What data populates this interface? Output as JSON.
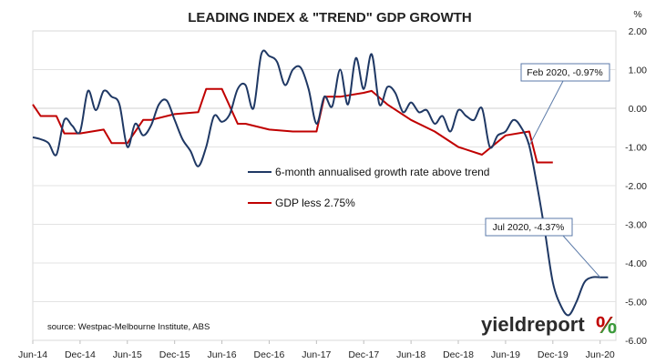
{
  "chart_data": {
    "type": "line",
    "title": "LEADING INDEX & \"TREND\" GDP GROWTH",
    "y_unit": "%",
    "ylim": [
      -6.0,
      2.0
    ],
    "yticks": [
      "2.00",
      "1.00",
      "0.00",
      "-1.00",
      "-2.00",
      "-3.00",
      "-4.00",
      "-5.00",
      "-6.00"
    ],
    "xticks": [
      "Jun-14",
      "Dec-14",
      "Jun-15",
      "Dec-15",
      "Jun-16",
      "Dec-16",
      "Jun-17",
      "Dec-17",
      "Jun-18",
      "Dec-18",
      "Jun-19",
      "Dec-19",
      "Jun-20"
    ],
    "grid": "horizontal-only",
    "legend_position": "center",
    "series": [
      {
        "name": "6-month annualised growth rate above trend",
        "color": "#1f3864",
        "x_months": [
          0,
          1,
          2,
          3,
          4,
          5,
          6,
          7,
          8,
          9,
          10,
          11,
          12,
          13,
          14,
          15,
          16,
          17,
          18,
          19,
          20,
          21,
          22,
          23,
          24,
          25,
          26,
          27,
          28,
          29,
          30,
          31,
          32,
          33,
          34,
          35,
          36,
          37,
          38,
          39,
          40,
          41,
          42,
          43,
          44,
          45,
          46,
          47,
          48,
          49,
          50,
          51,
          52,
          53,
          54,
          55,
          56,
          57,
          58,
          59,
          60,
          61,
          62,
          63,
          64,
          65,
          66,
          67,
          68,
          69,
          70,
          71,
          72,
          73
        ],
        "values": [
          -0.75,
          -0.8,
          -0.9,
          -1.2,
          -0.3,
          -0.45,
          -0.6,
          0.45,
          -0.05,
          0.45,
          0.3,
          0.1,
          -1.0,
          -0.4,
          -0.7,
          -0.45,
          0.1,
          0.2,
          -0.3,
          -0.8,
          -1.1,
          -1.5,
          -1.0,
          -0.2,
          -0.35,
          -0.15,
          0.5,
          0.6,
          0.0,
          1.4,
          1.35,
          1.2,
          0.6,
          1.0,
          1.05,
          0.5,
          -0.4,
          0.3,
          0.05,
          1.0,
          0.1,
          1.3,
          0.5,
          1.4,
          0.1,
          0.55,
          0.4,
          -0.1,
          0.15,
          -0.1,
          -0.05,
          -0.4,
          -0.2,
          -0.6,
          -0.05,
          -0.2,
          -0.3,
          0.0,
          -1.0,
          -0.7,
          -0.6,
          -0.3,
          -0.5,
          -0.97,
          -2.0,
          -3.2,
          -4.5,
          -5.1,
          -5.35,
          -5.0,
          -4.5,
          -4.37,
          -4.37,
          -4.37
        ]
      },
      {
        "name": "GDP less 2.75%",
        "color": "#c00000",
        "x_months": [
          0,
          1,
          3,
          4,
          6,
          9,
          10,
          12,
          14,
          15,
          18,
          21,
          22,
          24,
          26,
          27,
          30,
          33,
          36,
          37,
          39,
          42,
          43,
          45,
          48,
          51,
          54,
          57,
          60,
          63,
          64,
          66
        ],
        "values": [
          0.1,
          -0.2,
          -0.2,
          -0.65,
          -0.65,
          -0.55,
          -0.9,
          -0.9,
          -0.3,
          -0.3,
          -0.15,
          -0.1,
          0.5,
          0.5,
          -0.4,
          -0.4,
          -0.55,
          -0.6,
          -0.6,
          0.3,
          0.3,
          0.4,
          0.45,
          0.1,
          -0.3,
          -0.6,
          -1.0,
          -1.2,
          -0.7,
          -0.6,
          -1.4,
          -1.4
        ]
      }
    ],
    "annotations": [
      {
        "label": "Feb 2020, -0.97%"
      },
      {
        "label": "Jul 2020, -4.37%"
      }
    ],
    "source": "source: Westpac-Melbourne Institute, ABS"
  },
  "brand": {
    "name": "yieldreport",
    "symbol": "%",
    "colors": {
      "text": "#2b2b2b",
      "red": "#c00000",
      "green": "#3a9a3a"
    }
  }
}
